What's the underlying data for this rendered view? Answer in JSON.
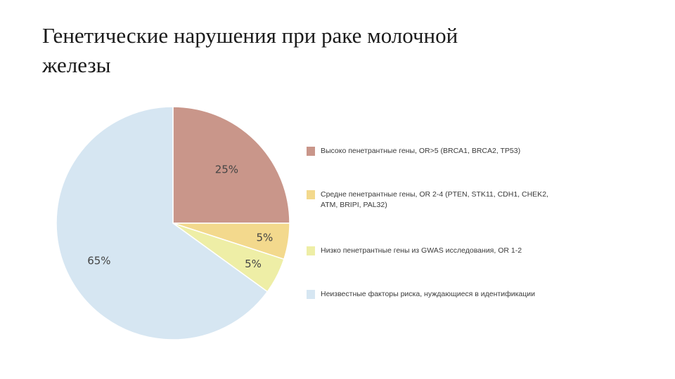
{
  "slide": {
    "title_line1": "Генетические нарушения при раке молочной",
    "title_line2": "железы"
  },
  "chart_data": {
    "type": "pie",
    "slices": [
      {
        "label": "Высоко пенетрантные гены, OR>5 (BRCA1, BRCA2, TP53)",
        "value": 25,
        "display": "25%",
        "color": "#c9968a"
      },
      {
        "label": "Средне пенетрантные гены, OR 2-4 (PTEN, STK11, CDH1, CHEK2, ATM, BRIPI, PAL32)",
        "value": 5,
        "display": "5%",
        "color": "#f3d98d"
      },
      {
        "label": "Низко пенетрантные гены из GWAS исследования, OR 1-2",
        "value": 5,
        "display": "5%",
        "color": "#eeeea6"
      },
      {
        "label": "Неизвестные факторы риска, нуждающиеся в идентификации",
        "value": 65,
        "display": "65%",
        "color": "#d6e6f2"
      }
    ],
    "legend_position": "right"
  }
}
